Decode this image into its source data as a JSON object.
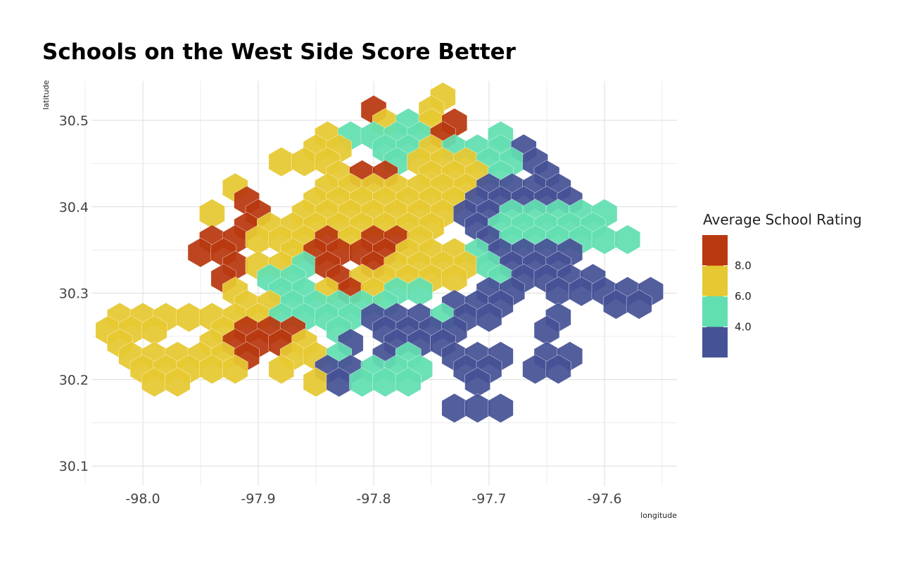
{
  "chart_data": {
    "type": "heatmap",
    "title": "Schools on the West Side Score Better",
    "xlabel": "longitude",
    "ylabel": "latitude",
    "xlim": [
      -98.04,
      -97.55
    ],
    "ylim": [
      30.08,
      30.545
    ],
    "x_ticks": [
      -98.0,
      -97.9,
      -97.8,
      -97.7,
      -97.6
    ],
    "x_tick_labels": [
      "-98.0",
      "-97.9",
      "-97.8",
      "-97.7",
      "-97.6"
    ],
    "y_ticks": [
      30.1,
      30.2,
      30.3,
      30.4,
      30.5
    ],
    "y_tick_labels": [
      "30.1",
      "30.2",
      "30.3",
      "30.4",
      "30.5"
    ],
    "grid": true,
    "legend": {
      "title": "Average School Rating",
      "placement": "right",
      "labels": [
        "8.0",
        "6.0",
        "4.0"
      ],
      "bins": [
        {
          "level": 4,
          "color": "#b8380f"
        },
        {
          "level": 3,
          "color": "#e6c832"
        },
        {
          "level": 2,
          "color": "#62dfb0"
        },
        {
          "level": 1,
          "color": "#465296"
        }
      ]
    },
    "hex_rows": [
      {
        "lat": 30.527,
        "offset": 1,
        "cells": [
          [
            -97.74,
            3
          ]
        ]
      },
      {
        "lat": 30.512,
        "offset": 0,
        "cells": [
          [
            -97.8,
            4
          ],
          [
            -97.75,
            3
          ]
        ]
      },
      {
        "lat": 30.497,
        "offset": 1,
        "cells": [
          [
            -97.79,
            3
          ],
          [
            -97.77,
            2
          ],
          [
            -97.75,
            3
          ],
          [
            -97.73,
            4
          ]
        ]
      },
      {
        "lat": 30.482,
        "offset": 0,
        "cells": [
          [
            -97.84,
            3
          ],
          [
            -97.82,
            2
          ],
          [
            -97.8,
            2
          ],
          [
            -97.78,
            2
          ],
          [
            -97.76,
            2
          ],
          [
            -97.74,
            4
          ],
          [
            -97.69,
            2
          ]
        ]
      },
      {
        "lat": 30.467,
        "offset": 1,
        "cells": [
          [
            -97.85,
            3
          ],
          [
            -97.83,
            3
          ],
          [
            -97.79,
            2
          ],
          [
            -97.77,
            2
          ],
          [
            -97.75,
            3
          ],
          [
            -97.73,
            2
          ],
          [
            -97.71,
            2
          ],
          [
            -97.69,
            2
          ],
          [
            -97.67,
            1
          ]
        ]
      },
      {
        "lat": 30.452,
        "offset": 0,
        "cells": [
          [
            -97.88,
            3
          ],
          [
            -97.86,
            3
          ],
          [
            -97.84,
            3
          ],
          [
            -97.78,
            2
          ],
          [
            -97.76,
            3
          ],
          [
            -97.74,
            3
          ],
          [
            -97.72,
            3
          ],
          [
            -97.7,
            2
          ],
          [
            -97.68,
            2
          ],
          [
            -97.66,
            1
          ]
        ]
      },
      {
        "lat": 30.437,
        "offset": 1,
        "cells": [
          [
            -97.83,
            3
          ],
          [
            -97.81,
            4
          ],
          [
            -97.79,
            4
          ],
          [
            -97.75,
            3
          ],
          [
            -97.73,
            3
          ],
          [
            -97.71,
            3
          ],
          [
            -97.69,
            2
          ],
          [
            -97.65,
            1
          ]
        ]
      },
      {
        "lat": 30.422,
        "offset": 0,
        "cells": [
          [
            -97.92,
            3
          ],
          [
            -97.84,
            3
          ],
          [
            -97.82,
            3
          ],
          [
            -97.8,
            3
          ],
          [
            -97.78,
            3
          ],
          [
            -97.76,
            3
          ],
          [
            -97.74,
            3
          ],
          [
            -97.72,
            3
          ],
          [
            -97.7,
            1
          ],
          [
            -97.68,
            1
          ],
          [
            -97.66,
            1
          ],
          [
            -97.64,
            1
          ]
        ]
      },
      {
        "lat": 30.407,
        "offset": 1,
        "cells": [
          [
            -97.91,
            4
          ],
          [
            -97.85,
            3
          ],
          [
            -97.83,
            3
          ],
          [
            -97.81,
            3
          ],
          [
            -97.79,
            3
          ],
          [
            -97.77,
            3
          ],
          [
            -97.75,
            3
          ],
          [
            -97.73,
            3
          ],
          [
            -97.71,
            1
          ],
          [
            -97.69,
            1
          ],
          [
            -97.67,
            1
          ],
          [
            -97.65,
            1
          ],
          [
            -97.63,
            1
          ]
        ]
      },
      {
        "lat": 30.392,
        "offset": 0,
        "cells": [
          [
            -97.94,
            3
          ],
          [
            -97.9,
            4
          ],
          [
            -97.86,
            3
          ],
          [
            -97.84,
            3
          ],
          [
            -97.82,
            3
          ],
          [
            -97.8,
            3
          ],
          [
            -97.78,
            3
          ],
          [
            -97.76,
            3
          ],
          [
            -97.74,
            3
          ],
          [
            -97.72,
            1
          ],
          [
            -97.7,
            1
          ],
          [
            -97.68,
            2
          ],
          [
            -97.66,
            2
          ],
          [
            -97.64,
            2
          ],
          [
            -97.62,
            2
          ],
          [
            -97.6,
            2
          ]
        ]
      },
      {
        "lat": 30.377,
        "offset": 1,
        "cells": [
          [
            -97.91,
            4
          ],
          [
            -97.89,
            3
          ],
          [
            -97.87,
            3
          ],
          [
            -97.85,
            3
          ],
          [
            -97.83,
            3
          ],
          [
            -97.81,
            3
          ],
          [
            -97.79,
            3
          ],
          [
            -97.77,
            3
          ],
          [
            -97.75,
            3
          ],
          [
            -97.71,
            1
          ],
          [
            -97.69,
            2
          ],
          [
            -97.67,
            2
          ],
          [
            -97.65,
            2
          ],
          [
            -97.63,
            2
          ],
          [
            -97.61,
            2
          ]
        ]
      },
      {
        "lat": 30.362,
        "offset": 0,
        "cells": [
          [
            -97.94,
            4
          ],
          [
            -97.92,
            4
          ],
          [
            -97.9,
            3
          ],
          [
            -97.88,
            3
          ],
          [
            -97.86,
            3
          ],
          [
            -97.84,
            4
          ],
          [
            -97.82,
            3
          ],
          [
            -97.8,
            4
          ],
          [
            -97.78,
            4
          ],
          [
            -97.76,
            3
          ],
          [
            -97.7,
            1
          ],
          [
            -97.68,
            2
          ],
          [
            -97.66,
            2
          ],
          [
            -97.64,
            2
          ],
          [
            -97.62,
            2
          ],
          [
            -97.6,
            2
          ],
          [
            -97.58,
            2
          ]
        ]
      },
      {
        "lat": 30.347,
        "offset": 1,
        "cells": [
          [
            -97.95,
            4
          ],
          [
            -97.93,
            4
          ],
          [
            -97.87,
            3
          ],
          [
            -97.85,
            4
          ],
          [
            -97.83,
            4
          ],
          [
            -97.81,
            4
          ],
          [
            -97.79,
            4
          ],
          [
            -97.77,
            3
          ],
          [
            -97.75,
            3
          ],
          [
            -97.73,
            3
          ],
          [
            -97.71,
            2
          ],
          [
            -97.69,
            1
          ],
          [
            -97.67,
            1
          ],
          [
            -97.65,
            1
          ],
          [
            -97.63,
            1
          ]
        ]
      },
      {
        "lat": 30.332,
        "offset": 0,
        "cells": [
          [
            -97.92,
            4
          ],
          [
            -97.9,
            3
          ],
          [
            -97.88,
            3
          ],
          [
            -97.86,
            2
          ],
          [
            -97.84,
            4
          ],
          [
            -97.8,
            4
          ],
          [
            -97.78,
            3
          ],
          [
            -97.76,
            3
          ],
          [
            -97.74,
            3
          ],
          [
            -97.72,
            3
          ],
          [
            -97.7,
            2
          ],
          [
            -97.68,
            1
          ],
          [
            -97.66,
            1
          ],
          [
            -97.64,
            1
          ]
        ]
      },
      {
        "lat": 30.317,
        "offset": 1,
        "cells": [
          [
            -97.93,
            4
          ],
          [
            -97.89,
            2
          ],
          [
            -97.87,
            2
          ],
          [
            -97.83,
            4
          ],
          [
            -97.81,
            3
          ],
          [
            -97.79,
            3
          ],
          [
            -97.77,
            3
          ],
          [
            -97.75,
            3
          ],
          [
            -97.73,
            3
          ],
          [
            -97.69,
            2
          ],
          [
            -97.67,
            1
          ],
          [
            -97.65,
            1
          ],
          [
            -97.63,
            1
          ],
          [
            -97.61,
            1
          ]
        ]
      },
      {
        "lat": 30.302,
        "offset": 0,
        "cells": [
          [
            -97.92,
            3
          ],
          [
            -97.88,
            2
          ],
          [
            -97.86,
            2
          ],
          [
            -97.84,
            3
          ],
          [
            -97.82,
            4
          ],
          [
            -97.8,
            3
          ],
          [
            -97.78,
            2
          ],
          [
            -97.76,
            2
          ],
          [
            -97.7,
            1
          ],
          [
            -97.68,
            1
          ],
          [
            -97.64,
            1
          ],
          [
            -97.62,
            1
          ],
          [
            -97.6,
            1
          ],
          [
            -97.58,
            1
          ],
          [
            -97.56,
            1
          ]
        ]
      },
      {
        "lat": 30.287,
        "offset": 1,
        "cells": [
          [
            -97.91,
            3
          ],
          [
            -97.89,
            3
          ],
          [
            -97.87,
            2
          ],
          [
            -97.85,
            2
          ],
          [
            -97.83,
            2
          ],
          [
            -97.81,
            2
          ],
          [
            -97.79,
            2
          ],
          [
            -97.73,
            1
          ],
          [
            -97.71,
            1
          ],
          [
            -97.69,
            1
          ],
          [
            -97.59,
            1
          ],
          [
            -97.57,
            1
          ]
        ]
      },
      {
        "lat": 30.272,
        "offset": 0,
        "cells": [
          [
            -98.02,
            3
          ],
          [
            -98.0,
            3
          ],
          [
            -97.98,
            3
          ],
          [
            -97.96,
            3
          ],
          [
            -97.94,
            3
          ],
          [
            -97.92,
            3
          ],
          [
            -97.9,
            3
          ],
          [
            -97.88,
            2
          ],
          [
            -97.86,
            2
          ],
          [
            -97.84,
            2
          ],
          [
            -97.82,
            2
          ],
          [
            -97.8,
            1
          ],
          [
            -97.78,
            1
          ],
          [
            -97.76,
            1
          ],
          [
            -97.74,
            2
          ],
          [
            -97.72,
            1
          ],
          [
            -97.7,
            1
          ],
          [
            -97.64,
            1
          ]
        ]
      },
      {
        "lat": 30.257,
        "offset": 1,
        "cells": [
          [
            -98.03,
            3
          ],
          [
            -98.01,
            3
          ],
          [
            -97.99,
            3
          ],
          [
            -97.93,
            3
          ],
          [
            -97.91,
            4
          ],
          [
            -97.89,
            4
          ],
          [
            -97.87,
            4
          ],
          [
            -97.83,
            2
          ],
          [
            -97.79,
            1
          ],
          [
            -97.77,
            1
          ],
          [
            -97.75,
            1
          ],
          [
            -97.73,
            1
          ],
          [
            -97.65,
            1
          ]
        ]
      },
      {
        "lat": 30.242,
        "offset": 0,
        "cells": [
          [
            -98.02,
            3
          ],
          [
            -97.94,
            3
          ],
          [
            -97.92,
            4
          ],
          [
            -97.9,
            4
          ],
          [
            -97.88,
            4
          ],
          [
            -97.86,
            3
          ],
          [
            -97.82,
            1
          ],
          [
            -97.78,
            1
          ],
          [
            -97.76,
            1
          ],
          [
            -97.74,
            1
          ]
        ]
      },
      {
        "lat": 30.227,
        "offset": 1,
        "cells": [
          [
            -98.01,
            3
          ],
          [
            -97.99,
            3
          ],
          [
            -97.97,
            3
          ],
          [
            -97.95,
            3
          ],
          [
            -97.93,
            3
          ],
          [
            -97.91,
            4
          ],
          [
            -97.87,
            3
          ],
          [
            -97.85,
            3
          ],
          [
            -97.83,
            2
          ],
          [
            -97.79,
            1
          ],
          [
            -97.77,
            2
          ],
          [
            -97.73,
            1
          ],
          [
            -97.71,
            1
          ],
          [
            -97.69,
            1
          ],
          [
            -97.65,
            1
          ],
          [
            -97.63,
            1
          ]
        ]
      },
      {
        "lat": 30.212,
        "offset": 0,
        "cells": [
          [
            -98.0,
            3
          ],
          [
            -97.98,
            3
          ],
          [
            -97.96,
            3
          ],
          [
            -97.94,
            3
          ],
          [
            -97.92,
            3
          ],
          [
            -97.88,
            3
          ],
          [
            -97.84,
            1
          ],
          [
            -97.82,
            1
          ],
          [
            -97.8,
            2
          ],
          [
            -97.78,
            2
          ],
          [
            -97.76,
            2
          ],
          [
            -97.72,
            1
          ],
          [
            -97.7,
            1
          ],
          [
            -97.66,
            1
          ],
          [
            -97.64,
            1
          ]
        ]
      },
      {
        "lat": 30.197,
        "offset": 1,
        "cells": [
          [
            -97.99,
            3
          ],
          [
            -97.97,
            3
          ],
          [
            -97.85,
            3
          ],
          [
            -97.83,
            1
          ],
          [
            -97.81,
            2
          ],
          [
            -97.79,
            2
          ],
          [
            -97.77,
            2
          ],
          [
            -97.71,
            1
          ]
        ]
      },
      {
        "lat": 30.167,
        "offset": 1,
        "cells": [
          [
            -97.73,
            1
          ],
          [
            -97.71,
            1
          ],
          [
            -97.69,
            1
          ]
        ]
      }
    ]
  }
}
